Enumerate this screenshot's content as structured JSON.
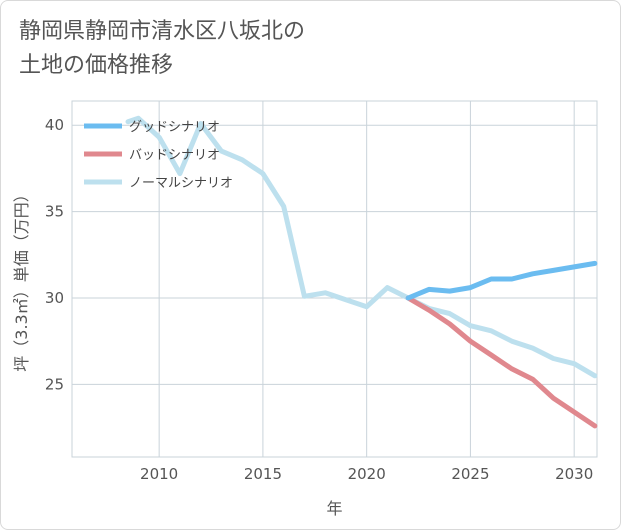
{
  "title_line1": "静岡県静岡市清水区八坂北の",
  "title_line2": "土地の価格推移",
  "chart_data": {
    "type": "line",
    "xlabel": "年",
    "ylabel": "坪（3.3㎡）単価（万円）",
    "xlim": [
      2005.8,
      2031.1
    ],
    "ylim": [
      20.8,
      41.4
    ],
    "xticks": [
      2010,
      2015,
      2020,
      2025,
      2030
    ],
    "yticks": [
      25,
      30,
      35,
      40
    ],
    "grid": true,
    "legend_position": "top-left",
    "series": [
      {
        "name": "グッドシナリオ",
        "color": "#6bbcf0",
        "points": [
          [
            2022,
            30.0
          ],
          [
            2023,
            30.5
          ],
          [
            2024,
            30.4
          ],
          [
            2025,
            30.6
          ],
          [
            2026,
            31.1
          ],
          [
            2027,
            31.1
          ],
          [
            2028,
            31.4
          ],
          [
            2029,
            31.6
          ],
          [
            2030,
            31.8
          ],
          [
            2031,
            32.0
          ]
        ]
      },
      {
        "name": "バッドシナリオ",
        "color": "#e0888e",
        "points": [
          [
            2022,
            30.0
          ],
          [
            2023,
            29.3
          ],
          [
            2024,
            28.5
          ],
          [
            2025,
            27.5
          ],
          [
            2026,
            26.7
          ],
          [
            2027,
            25.9
          ],
          [
            2028,
            25.3
          ],
          [
            2029,
            24.2
          ],
          [
            2030,
            23.4
          ],
          [
            2031,
            22.6
          ]
        ]
      },
      {
        "name": "ノーマルシナリオ",
        "color": "#bde0ee",
        "points": [
          [
            2008.5,
            40.2
          ],
          [
            2009,
            40.4
          ],
          [
            2010,
            39.3
          ],
          [
            2011,
            37.2
          ],
          [
            2012,
            40.1
          ],
          [
            2013,
            38.5
          ],
          [
            2014,
            38.0
          ],
          [
            2015,
            37.2
          ],
          [
            2016,
            35.3
          ],
          [
            2017,
            30.1
          ],
          [
            2018,
            30.3
          ],
          [
            2019,
            29.9
          ],
          [
            2020,
            29.5
          ],
          [
            2021,
            30.6
          ],
          [
            2022,
            30.0
          ],
          [
            2023,
            29.4
          ],
          [
            2024,
            29.1
          ],
          [
            2025,
            28.4
          ],
          [
            2026,
            28.1
          ],
          [
            2027,
            27.5
          ],
          [
            2028,
            27.1
          ],
          [
            2029,
            26.5
          ],
          [
            2030,
            26.2
          ],
          [
            2031,
            25.5
          ]
        ]
      }
    ]
  }
}
